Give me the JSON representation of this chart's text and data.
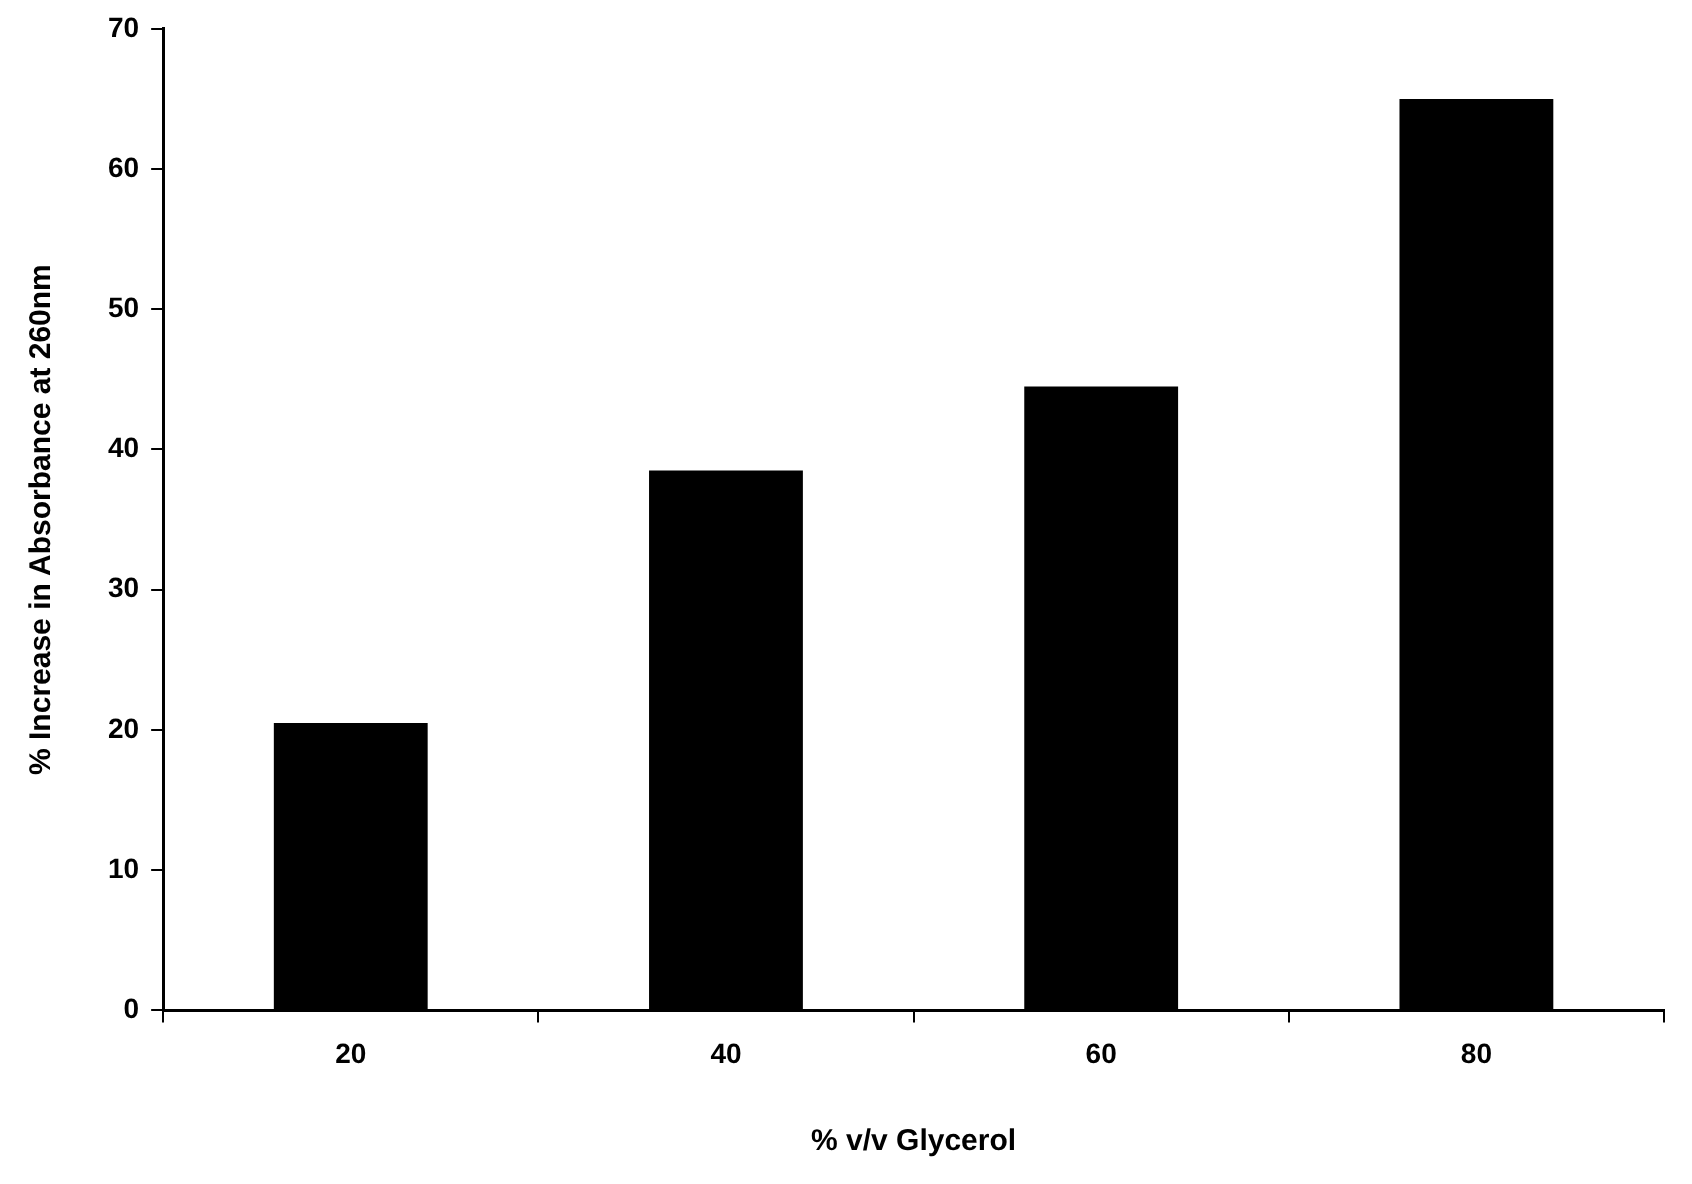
{
  "chart_data": {
    "type": "bar",
    "xlabel": "% v/v Glycerol",
    "ylabel": "% Increase in Absorbance at 260nm",
    "categories": [
      "20",
      "40",
      "60",
      "80"
    ],
    "values": [
      20.5,
      38.5,
      44.5,
      65
    ],
    "color": "#000000",
    "ylim": [
      0,
      70
    ],
    "yticks": [
      0,
      10,
      20,
      30,
      40,
      50,
      60,
      70
    ],
    "grid": false,
    "legend": false
  }
}
